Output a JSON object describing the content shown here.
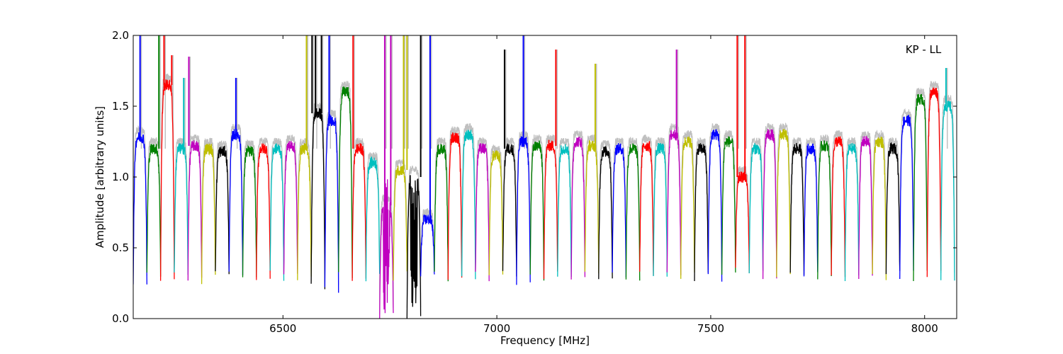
{
  "chart_data": {
    "type": "line",
    "title": "",
    "annotation": "KP - LL",
    "xlabel": "Frequency [MHz]",
    "ylabel": "Amplitude [arbitrary units]",
    "xlim": [
      6150,
      8075
    ],
    "ylim": [
      0.0,
      2.0
    ],
    "xticks": [
      6500,
      7000,
      7500,
      8000
    ],
    "xtick_labels": [
      "6500",
      "7000",
      "7500",
      "8000"
    ],
    "yticks": [
      0.0,
      0.5,
      1.0,
      1.5,
      2.0
    ],
    "ytick_labels": [
      "0.0",
      "0.5",
      "1.0",
      "1.5",
      "2.0"
    ],
    "grid": false,
    "legend": "none",
    "background_series_color": "#c0c0c0",
    "colors": [
      "#0000ff",
      "#008000",
      "#ff0000",
      "#00bfbf",
      "#bf00bf",
      "#bfbf00",
      "#000000"
    ],
    "channel_width_mhz": 32,
    "channel_centers_mhz": [
      6166,
      6198,
      6230,
      6262,
      6294,
      6326,
      6358,
      6390,
      6422,
      6454,
      6486,
      6518,
      6550,
      6582,
      6614,
      6646,
      6678,
      6710,
      6742,
      6774,
      6806,
      6838,
      6870,
      6902,
      6934,
      6966,
      6998,
      7030,
      7062,
      7094,
      7126,
      7158,
      7190,
      7222,
      7254,
      7286,
      7318,
      7350,
      7382,
      7414,
      7446,
      7478,
      7510,
      7542,
      7574,
      7606,
      7638,
      7670,
      7702,
      7734,
      7766,
      7798,
      7830,
      7862,
      7894,
      7926,
      7958,
      7990,
      8022,
      8054
    ],
    "channel_levels": [
      1.28,
      1.2,
      1.65,
      1.2,
      1.22,
      1.2,
      1.18,
      1.3,
      1.18,
      1.2,
      1.2,
      1.22,
      1.2,
      1.45,
      1.4,
      1.6,
      1.2,
      1.1,
      0.8,
      1.05,
      1.0,
      0.7,
      1.2,
      1.28,
      1.3,
      1.2,
      1.15,
      1.2,
      1.25,
      1.22,
      1.22,
      1.2,
      1.25,
      1.22,
      1.18,
      1.2,
      1.2,
      1.22,
      1.2,
      1.3,
      1.25,
      1.2,
      1.3,
      1.25,
      1.0,
      1.2,
      1.3,
      1.3,
      1.2,
      1.2,
      1.22,
      1.25,
      1.2,
      1.25,
      1.25,
      1.2,
      1.4,
      1.55,
      1.6,
      1.5
    ],
    "channel_edge_min": [
      0.25,
      0.3,
      0.3,
      0.3,
      0.3,
      0.28,
      0.3,
      0.3,
      0.3,
      0.3,
      0.3,
      0.3,
      0.3,
      0.22,
      0.2,
      0.3,
      0.3,
      0.3,
      0.0,
      0.3,
      0.0,
      0.3,
      0.3,
      0.3,
      0.3,
      0.3,
      0.3,
      0.3,
      0.25,
      0.3,
      0.3,
      0.3,
      0.3,
      0.3,
      0.3,
      0.3,
      0.3,
      0.3,
      0.3,
      0.3,
      0.3,
      0.3,
      0.3,
      0.3,
      0.35,
      0.3,
      0.3,
      0.3,
      0.3,
      0.3,
      0.3,
      0.3,
      0.3,
      0.3,
      0.3,
      0.3,
      0.3,
      0.3,
      0.3,
      0.3
    ],
    "spikes_mhz": [
      6166,
      6210,
      6222,
      6240,
      6268,
      6280,
      6390,
      6555,
      6568,
      6576,
      6590,
      6608,
      6664,
      6738,
      6752,
      6782,
      6790,
      6822,
      6844,
      7018,
      7062,
      7138,
      7230,
      7420,
      7562,
      7580,
      8050
    ],
    "spike_heights": [
      2.0,
      2.0,
      2.0,
      1.86,
      1.7,
      1.85,
      1.7,
      2.0,
      2.0,
      2.0,
      2.0,
      2.0,
      2.0,
      2.0,
      2.0,
      2.0,
      2.0,
      2.0,
      2.0,
      1.9,
      2.0,
      1.9,
      1.8,
      1.9,
      2.0,
      2.0,
      1.77
    ]
  }
}
